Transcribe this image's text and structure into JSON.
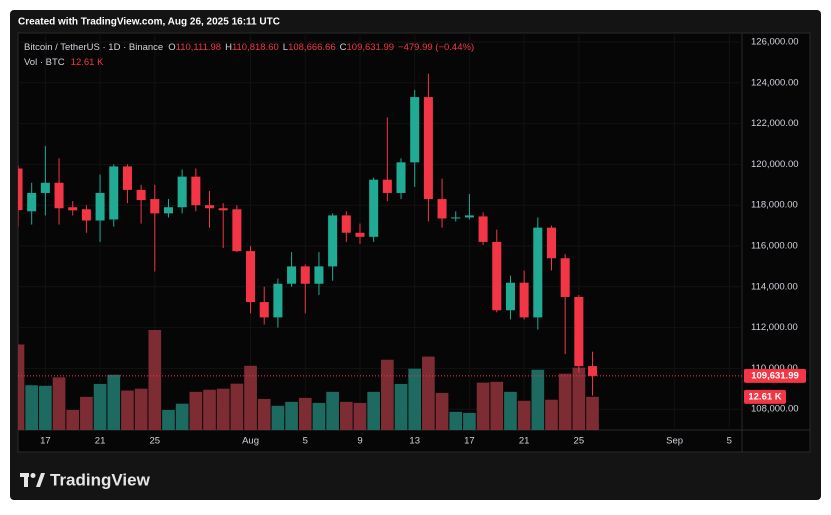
{
  "header": "Created with TradingView.com, Aug 26, 2025 16:11 UTC",
  "brand": "TradingView",
  "chart_data": {
    "type": "candlestick",
    "legend": {
      "symbol": "Bitcoin / TetherUS · 1D · Binance",
      "fields": [
        {
          "label": "O",
          "value": "110,111.98"
        },
        {
          "label": "H",
          "value": "110,818.60"
        },
        {
          "label": "L",
          "value": "108,666.66"
        },
        {
          "label": "C",
          "value": "109,631.99"
        }
      ],
      "change": "−479.99 (−0.44%)",
      "volume_name": "Vol · BTC",
      "volume_value": "12.61 K"
    },
    "x": [
      "2025-07-15",
      "2025-07-16",
      "2025-07-17",
      "2025-07-18",
      "2025-07-19",
      "2025-07-20",
      "2025-07-21",
      "2025-07-22",
      "2025-07-23",
      "2025-07-24",
      "2025-07-25",
      "2025-07-26",
      "2025-07-27",
      "2025-07-28",
      "2025-07-29",
      "2025-07-30",
      "2025-07-31",
      "2025-08-01",
      "2025-08-02",
      "2025-08-03",
      "2025-08-04",
      "2025-08-05",
      "2025-08-06",
      "2025-08-07",
      "2025-08-08",
      "2025-08-09",
      "2025-08-10",
      "2025-08-11",
      "2025-08-12",
      "2025-08-13",
      "2025-08-14",
      "2025-08-15",
      "2025-08-16",
      "2025-08-17",
      "2025-08-18",
      "2025-08-19",
      "2025-08-20",
      "2025-08-21",
      "2025-08-22",
      "2025-08-23",
      "2025-08-24",
      "2025-08-25",
      "2025-08-26"
    ],
    "open": [
      119800,
      117700,
      118600,
      119100,
      117900,
      117800,
      117250,
      117300,
      119900,
      118750,
      118300,
      117600,
      117900,
      119400,
      118000,
      117850,
      117800,
      115750,
      113250,
      112500,
      114150,
      115000,
      114150,
      115000,
      117500,
      116650,
      116450,
      119250,
      118600,
      120100,
      123300,
      118300,
      117350,
      117400,
      117450,
      116200,
      112850,
      114200,
      112500,
      116900,
      115400,
      113500,
      110111.98
    ],
    "high": [
      119950,
      119100,
      120900,
      120300,
      118200,
      118000,
      119500,
      120000,
      120000,
      119000,
      119000,
      118300,
      119750,
      119800,
      118700,
      118100,
      118000,
      116000,
      114000,
      114400,
      115700,
      115100,
      115700,
      117600,
      117700,
      117100,
      119350,
      122300,
      120300,
      123650,
      124450,
      119300,
      117700,
      118550,
      117650,
      116800,
      114550,
      114800,
      117400,
      117000,
      115600,
      113600,
      110818.6
    ],
    "low": [
      116950,
      117050,
      117500,
      117050,
      117500,
      116650,
      116200,
      116950,
      118100,
      117100,
      114750,
      117400,
      117600,
      117700,
      116900,
      115900,
      115700,
      112700,
      112150,
      112000,
      114000,
      112700,
      113600,
      114300,
      116200,
      116100,
      116200,
      118200,
      118300,
      118900,
      117200,
      116900,
      117200,
      117300,
      116050,
      112750,
      112400,
      112400,
      111900,
      114800,
      110700,
      109800,
      108666.66
    ],
    "close": [
      117760,
      118600,
      119100,
      117850,
      117750,
      117250,
      118600,
      119900,
      118750,
      118250,
      117600,
      117900,
      119400,
      118000,
      117850,
      117750,
      115750,
      113250,
      112500,
      114150,
      115000,
      114150,
      115000,
      117500,
      116650,
      116450,
      119250,
      118600,
      120100,
      123300,
      118300,
      117350,
      117400,
      117500,
      116200,
      112850,
      114200,
      112500,
      116900,
      115400,
      113500,
      110110,
      109631.99
    ],
    "volume": [
      32.5,
      17,
      16.8,
      20,
      7.6,
      12.6,
      17.5,
      21,
      15,
      15.7,
      38,
      7.6,
      10,
      14.5,
      15.3,
      15.7,
      17.6,
      24.4,
      11.8,
      9.2,
      10.7,
      12.2,
      10.3,
      14.5,
      10.7,
      10.3,
      14.5,
      26.7,
      17.5,
      23.3,
      27.9,
      14.1,
      6.9,
      6.5,
      18,
      18.3,
      14.5,
      11.1,
      22.9,
      11.5,
      21.4,
      23.7,
      12.61
    ],
    "colors": {
      "up": "#22ab94",
      "down": "#f23645",
      "volume_up": "#1d6a60",
      "volume_down": "#7d2c33"
    },
    "last_price_label": "109,631.99",
    "last_volume_label": "12.61 K",
    "xlim": [
      "2025-07-15",
      "2025-09-06"
    ],
    "ylim": [
      106980,
      126441
    ],
    "yticks": [
      {
        "value": 108000,
        "label": "108,000.00"
      },
      {
        "value": 110000,
        "label": "110,000.00"
      },
      {
        "value": 112000,
        "label": "112,000.00"
      },
      {
        "value": 114000,
        "label": "114,000.00"
      },
      {
        "value": 116000,
        "label": "116,000.00"
      },
      {
        "value": 118000,
        "label": "118,000.00"
      },
      {
        "value": 120000,
        "label": "120,000.00"
      },
      {
        "value": 122000,
        "label": "122,000.00"
      },
      {
        "value": 124000,
        "label": "124,000.00"
      },
      {
        "value": 126000,
        "label": "126,000.00"
      }
    ],
    "xticks": [
      {
        "value": "2025-07-17",
        "label": "17"
      },
      {
        "value": "2025-07-21",
        "label": "21"
      },
      {
        "value": "2025-07-25",
        "label": "25"
      },
      {
        "value": "2025-08-01",
        "label": "Aug"
      },
      {
        "value": "2025-08-05",
        "label": "5"
      },
      {
        "value": "2025-08-09",
        "label": "9"
      },
      {
        "value": "2025-08-13",
        "label": "13"
      },
      {
        "value": "2025-08-17",
        "label": "17"
      },
      {
        "value": "2025-08-21",
        "label": "21"
      },
      {
        "value": "2025-08-25",
        "label": "25"
      },
      {
        "value": "2025-09-01",
        "label": "Sep"
      },
      {
        "value": "2025-09-05",
        "label": "5"
      }
    ],
    "grid": true
  }
}
